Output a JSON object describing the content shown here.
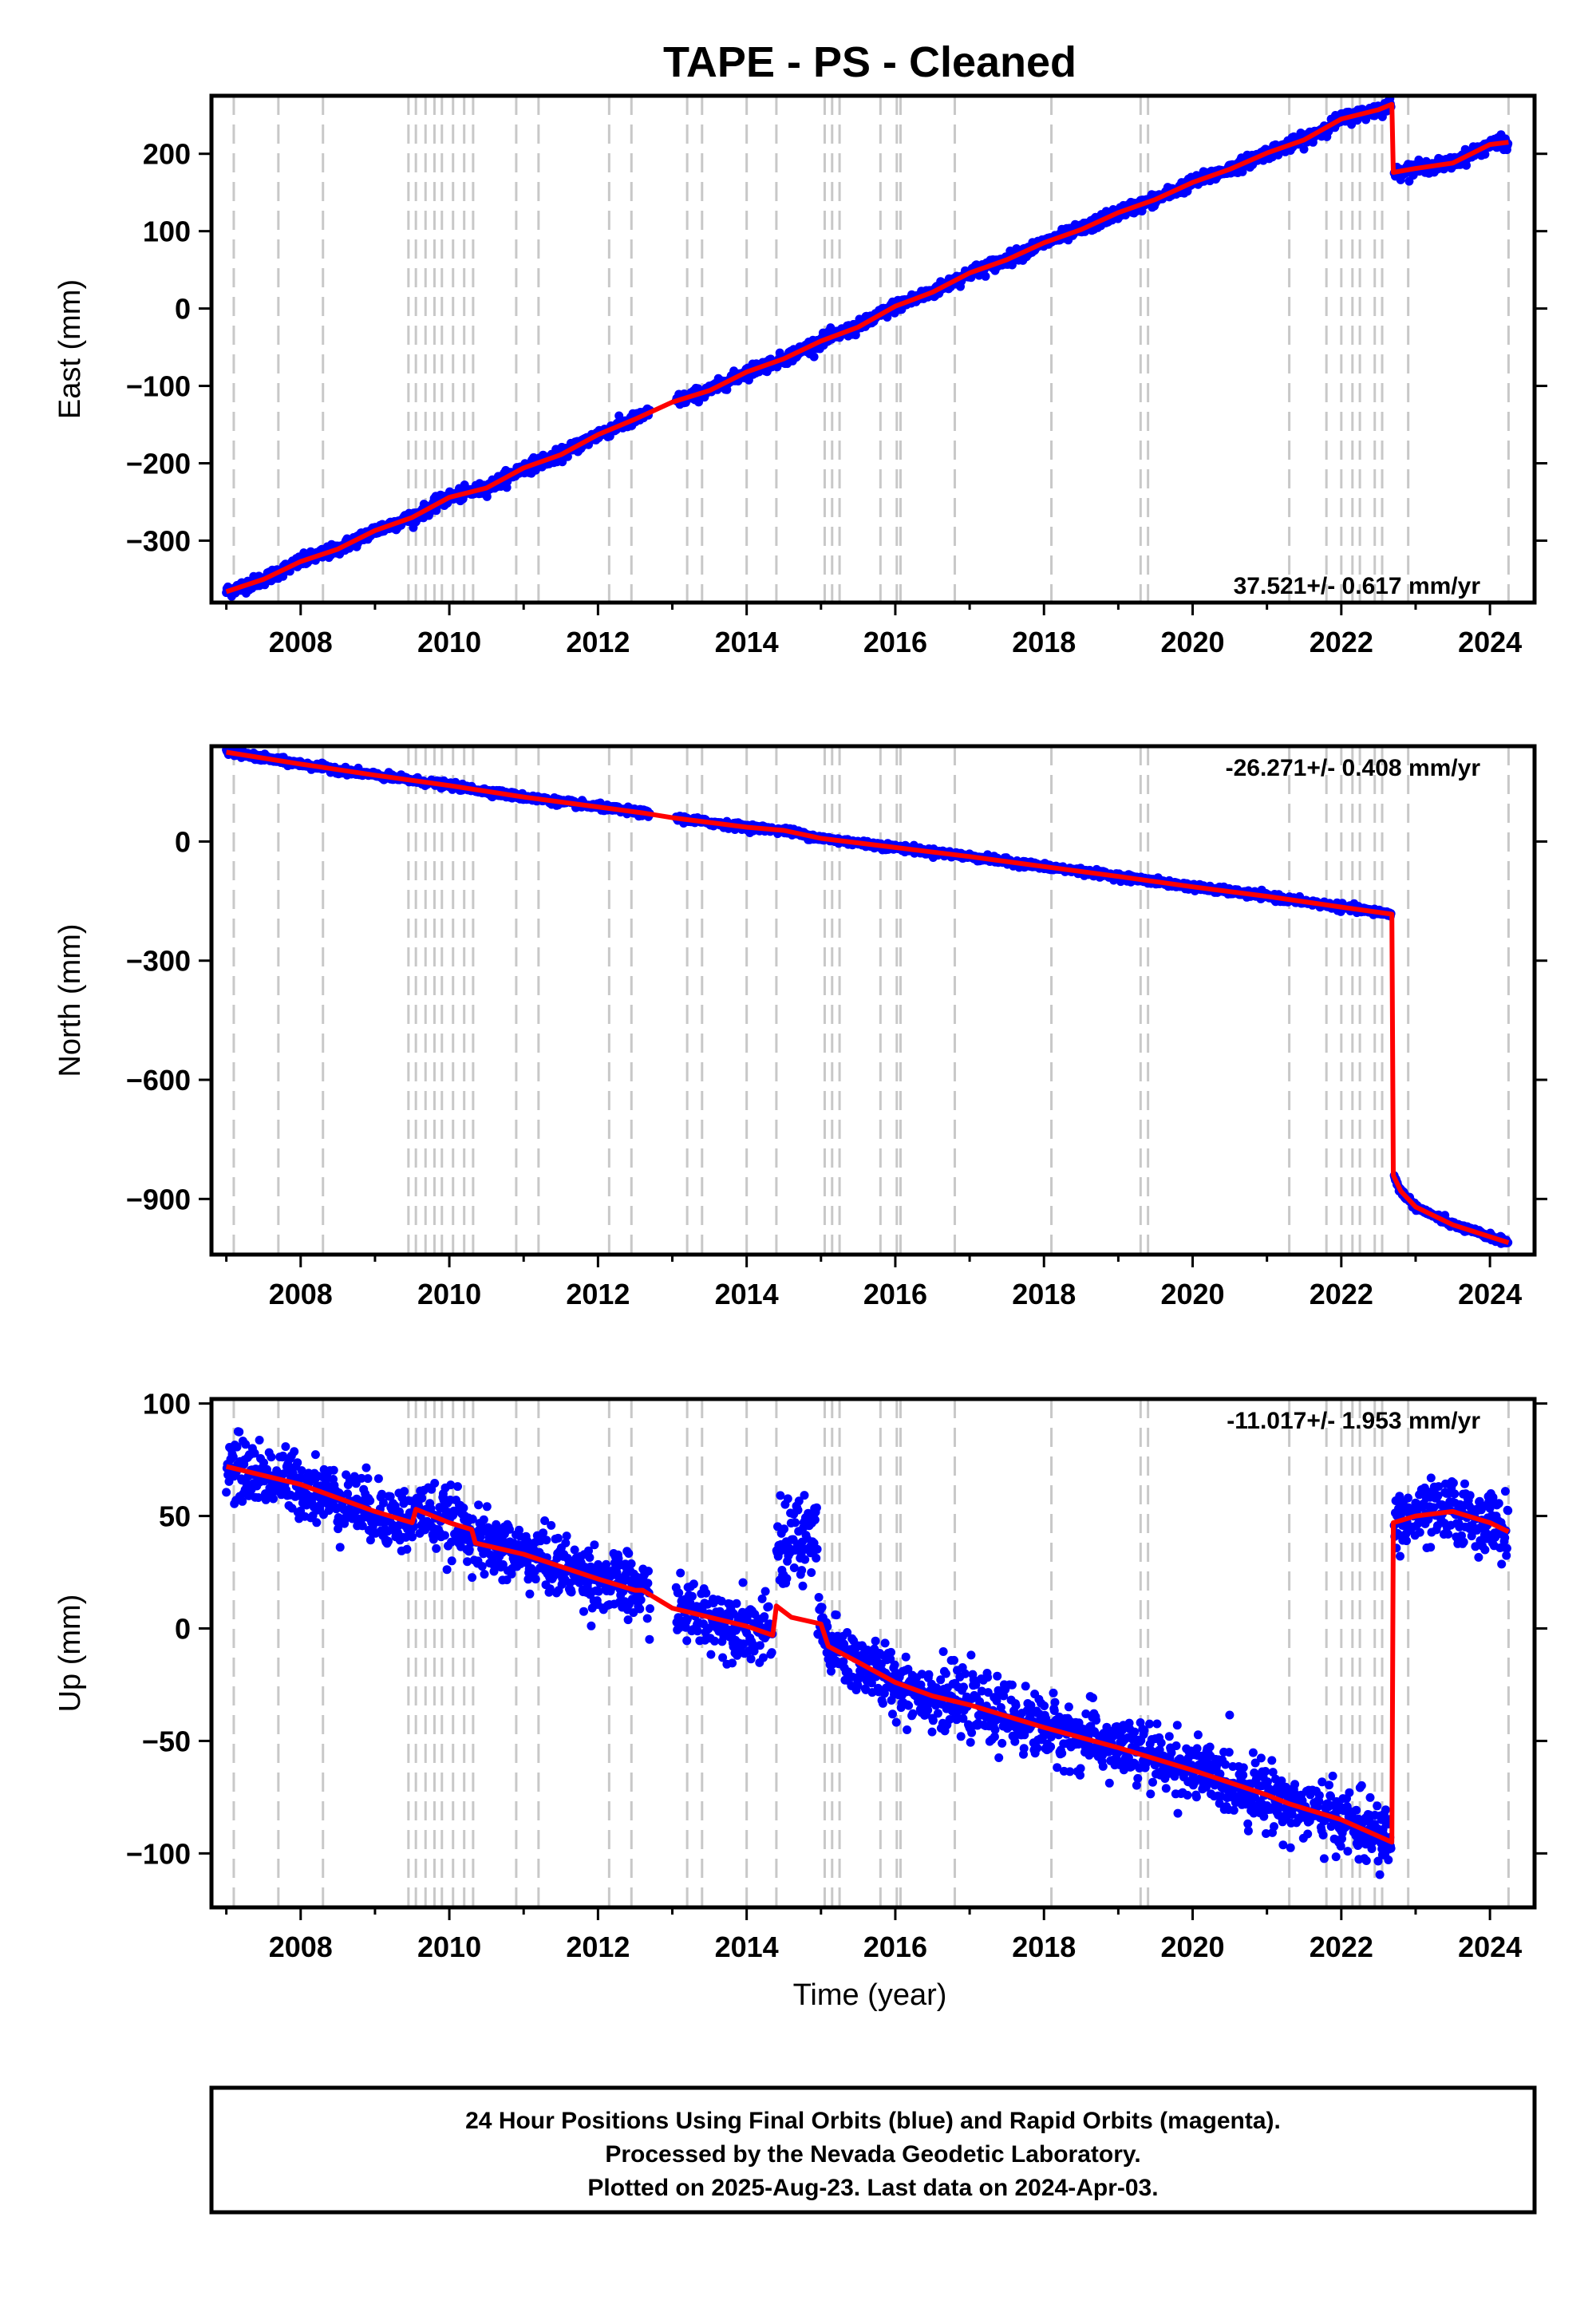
{
  "title": "TAPE  - PS - Cleaned",
  "xlabel": "Time (year)",
  "footer": {
    "line1": "24 Hour Positions Using Final Orbits (blue) and Rapid Orbits (magenta).",
    "line2": "Processed by the Nevada Geodetic Laboratory.",
    "line3": "Plotted on 2025-Aug-23. Last data on 2024-Apr-03."
  },
  "colors": {
    "data": "#0000ff",
    "model": "#ff0000",
    "steps": "#c8c8c8",
    "frame": "#000000"
  },
  "chart_data": [
    {
      "type": "scatter",
      "component": "East",
      "ylabel": "East (mm)",
      "rate_label": "37.521+/- 0.617 mm/yr",
      "xlim": [
        2006.8,
        2024.6
      ],
      "ylim": [
        -380,
        275
      ],
      "yticks": [
        -300,
        -200,
        -100,
        0,
        100,
        200
      ],
      "xticks": [
        2008,
        2010,
        2012,
        2014,
        2016,
        2018,
        2020,
        2022,
        2024
      ],
      "model": [
        [
          2007.0,
          -366
        ],
        [
          2007.5,
          -350
        ],
        [
          2008.0,
          -327
        ],
        [
          2008.5,
          -311
        ],
        [
          2009.0,
          -287
        ],
        [
          2009.5,
          -270
        ],
        [
          2010.0,
          -244
        ],
        [
          2010.5,
          -232
        ],
        [
          2011.0,
          -206
        ],
        [
          2011.5,
          -189
        ],
        [
          2012.0,
          -163
        ],
        [
          2012.5,
          -143
        ],
        [
          2013.0,
          -121
        ],
        [
          2013.5,
          -106
        ],
        [
          2014.0,
          -82
        ],
        [
          2014.5,
          -65
        ],
        [
          2015.0,
          -42
        ],
        [
          2015.5,
          -24
        ],
        [
          2016.0,
          3
        ],
        [
          2016.5,
          21
        ],
        [
          2017.0,
          46
        ],
        [
          2017.5,
          63
        ],
        [
          2018.0,
          85
        ],
        [
          2018.5,
          102
        ],
        [
          2019.0,
          124
        ],
        [
          2019.5,
          141
        ],
        [
          2020.0,
          163
        ],
        [
          2020.5,
          180
        ],
        [
          2021.0,
          201
        ],
        [
          2021.5,
          218
        ],
        [
          2022.0,
          245
        ],
        [
          2022.5,
          257
        ],
        [
          2022.68,
          264
        ],
        [
          2022.7,
          176
        ],
        [
          2023.0,
          181
        ],
        [
          2023.5,
          188
        ],
        [
          2024.0,
          212
        ],
        [
          2024.25,
          215
        ]
      ],
      "noise_mm": 4
    },
    {
      "type": "scatter",
      "component": "North",
      "ylabel": "North (mm)",
      "rate_label": "-26.271+/- 0.408 mm/yr",
      "xlim": [
        2006.8,
        2024.6
      ],
      "ylim": [
        -1040,
        240
      ],
      "yticks": [
        -900,
        -600,
        -300,
        0
      ],
      "xticks": [
        2008,
        2010,
        2012,
        2014,
        2016,
        2018,
        2020,
        2022,
        2024
      ],
      "model": [
        [
          2007.0,
          225
        ],
        [
          2008.0,
          195
        ],
        [
          2009.0,
          167
        ],
        [
          2010.0,
          141
        ],
        [
          2011.0,
          112
        ],
        [
          2012.0,
          87
        ],
        [
          2012.6,
          72
        ],
        [
          2013.0,
          60
        ],
        [
          2014.0,
          36
        ],
        [
          2014.5,
          28
        ],
        [
          2015.0,
          8
        ],
        [
          2016.0,
          -15
        ],
        [
          2017.0,
          -38
        ],
        [
          2018.0,
          -63
        ],
        [
          2019.0,
          -88
        ],
        [
          2020.0,
          -114
        ],
        [
          2021.0,
          -138
        ],
        [
          2022.0,
          -165
        ],
        [
          2022.68,
          -183
        ],
        [
          2022.7,
          -840
        ],
        [
          2022.8,
          -880
        ],
        [
          2023.0,
          -920
        ],
        [
          2023.5,
          -965
        ],
        [
          2024.0,
          -995
        ],
        [
          2024.25,
          -1010
        ]
      ],
      "noise_mm": 4
    },
    {
      "type": "scatter",
      "component": "Up",
      "ylabel": "Up (mm)",
      "rate_label": "-11.017+/- 1.953 mm/yr",
      "xlim": [
        2006.8,
        2024.6
      ],
      "ylim": [
        -124,
        102
      ],
      "yticks": [
        -100,
        -50,
        0,
        50,
        100
      ],
      "xticks": [
        2008,
        2010,
        2012,
        2014,
        2016,
        2018,
        2020,
        2022,
        2024
      ],
      "model": [
        [
          2007.0,
          72
        ],
        [
          2008.0,
          64
        ],
        [
          2009.0,
          52
        ],
        [
          2009.5,
          47
        ],
        [
          2009.55,
          53
        ],
        [
          2010.0,
          47
        ],
        [
          2010.3,
          44
        ],
        [
          2010.35,
          38
        ],
        [
          2011.0,
          33
        ],
        [
          2012.0,
          22
        ],
        [
          2012.5,
          17
        ],
        [
          2012.6,
          17
        ],
        [
          2013.0,
          9
        ],
        [
          2013.5,
          5
        ],
        [
          2014.0,
          1
        ],
        [
          2014.35,
          -3
        ],
        [
          2014.4,
          10
        ],
        [
          2014.6,
          5
        ],
        [
          2015.0,
          2
        ],
        [
          2015.1,
          -8
        ],
        [
          2015.5,
          -15
        ],
        [
          2016.0,
          -24
        ],
        [
          2016.5,
          -30
        ],
        [
          2017.0,
          -34
        ],
        [
          2018.0,
          -44
        ],
        [
          2019.0,
          -53
        ],
        [
          2020.0,
          -63
        ],
        [
          2021.0,
          -74
        ],
        [
          2021.3,
          -78
        ],
        [
          2022.0,
          -85
        ],
        [
          2022.68,
          -95
        ],
        [
          2022.7,
          47
        ],
        [
          2023.0,
          50
        ],
        [
          2023.5,
          52
        ],
        [
          2024.0,
          47
        ],
        [
          2024.25,
          43
        ]
      ],
      "noise_mm": 7,
      "outlier_cluster": {
        "x_range": [
          2014.4,
          2014.95
        ],
        "y_center": 40,
        "y_spread": 12
      }
    }
  ],
  "step_epochs": [
    2007.1,
    2007.7,
    2008.3,
    2009.45,
    2009.55,
    2009.68,
    2009.8,
    2009.9,
    2010.05,
    2010.2,
    2010.32,
    2010.9,
    2011.2,
    2012.15,
    2012.45,
    2013.2,
    2013.4,
    2014.0,
    2014.4,
    2015.05,
    2015.15,
    2015.25,
    2015.8,
    2016.02,
    2016.07,
    2016.8,
    2018.1,
    2019.3,
    2019.4,
    2021.3,
    2021.8,
    2022.0,
    2022.15,
    2022.25,
    2022.45,
    2022.55,
    2022.9,
    2024.25
  ]
}
